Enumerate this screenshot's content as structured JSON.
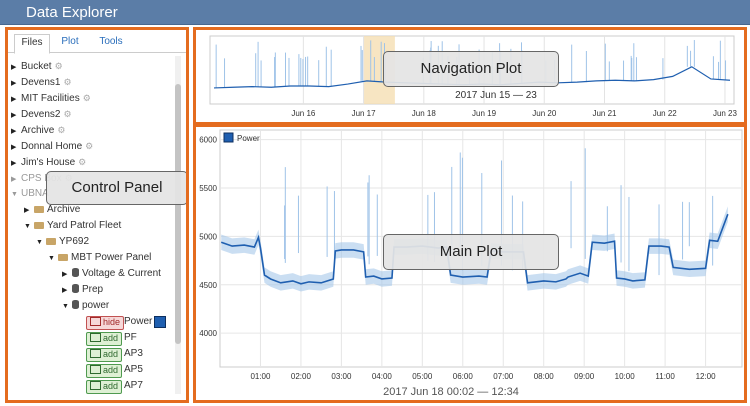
{
  "app": {
    "title": "Data Explorer"
  },
  "tabs": [
    {
      "label": "Files",
      "active": true
    },
    {
      "label": "Plot",
      "active": false
    },
    {
      "label": "Tools",
      "active": false
    }
  ],
  "tree": {
    "root_items": [
      "Bucket",
      "Devens1",
      "MIT Facilities",
      "Devens2",
      "Archive",
      "Donnal Home",
      "Jim's House",
      "CPS Box",
      "UBNA"
    ],
    "archive": "Archive",
    "fleet": "Yard Patrol Fleet",
    "vessel": "YP692",
    "panel": "MBT Power Panel",
    "streams": [
      "Voltage & Current",
      "Prep",
      "power"
    ],
    "elements": [
      {
        "button": "hide",
        "name": "Power",
        "plotted": true
      },
      {
        "button": "add",
        "name": "PF",
        "plotted": false
      },
      {
        "button": "add",
        "name": "AP3",
        "plotted": false
      },
      {
        "button": "add",
        "name": "AP5",
        "plotted": false
      },
      {
        "button": "add",
        "name": "AP7",
        "plotted": false
      }
    ]
  },
  "overlays": {
    "control_panel": "Control Panel",
    "navigation_plot": "Navigation Plot",
    "main_plot": "Main Plot"
  },
  "colors": {
    "accent": "#e46c1f",
    "series": "#1f5fb0",
    "series_band": "#9fc3e8",
    "selection": "#f5deb3"
  },
  "chart_data": [
    {
      "type": "line",
      "role": "navigation",
      "x_ticks": [
        "Jun 16",
        "Jun 17",
        "Jun 18",
        "Jun 19",
        "Jun 20",
        "Jun 21",
        "Jun 22",
        "Jun 23"
      ],
      "range_label": "2017 Jun 15 — 23",
      "selection": [
        "Jun 18 00:02",
        "Jun 18 12:34"
      ],
      "series": [
        {
          "values": [
            0.22,
            0.23,
            0.24,
            0.23,
            0.25,
            0.25,
            0.24,
            0.28,
            0.33,
            0.31,
            0.3,
            0.29,
            0.28,
            0.27,
            0.28,
            0.27,
            0.29,
            0.31,
            0.3,
            0.31,
            0.33,
            0.34,
            0.33,
            0.35,
            0.4,
            0.55,
            0.36,
            0.34
          ]
        }
      ]
    },
    {
      "type": "line",
      "role": "main",
      "legend": [
        "Power"
      ],
      "y_ticks": [
        4000,
        4500,
        5000,
        5500,
        6000
      ],
      "ylim": [
        3650,
        6100
      ],
      "x_ticks": [
        "01:00",
        "02:00",
        "03:00",
        "04:00",
        "05:00",
        "06:00",
        "07:00",
        "08:00",
        "09:00",
        "10:00",
        "11:00",
        "12:00"
      ],
      "range_label": "2017 Jun 18 00:02 — 12:34",
      "series": [
        {
          "name": "Power",
          "x_hours": [
            0.03,
            0.3,
            0.6,
            0.85,
            0.95,
            1.0,
            1.1,
            1.25,
            1.5,
            1.8,
            2.0,
            2.2,
            2.5,
            2.8,
            2.85,
            3.0,
            3.3,
            3.55,
            3.6,
            3.8,
            4.0,
            4.25,
            4.3,
            4.6,
            5.0,
            5.4,
            5.6,
            5.7,
            6.0,
            6.4,
            6.6,
            6.7,
            7.0,
            7.5,
            7.6,
            8.0,
            8.3,
            8.55,
            8.6,
            8.9,
            9.1,
            9.2,
            9.5,
            9.75,
            9.8,
            10.0,
            10.2,
            10.5,
            10.6,
            10.9,
            11.1,
            11.2,
            11.6,
            12.0,
            12.1,
            12.3,
            12.55
          ],
          "y": [
            4940,
            4900,
            4910,
            4890,
            4990,
            4880,
            4600,
            4560,
            4520,
            4540,
            4510,
            4530,
            4520,
            4560,
            4850,
            4860,
            4860,
            4840,
            4580,
            4590,
            4560,
            4570,
            4890,
            4890,
            4900,
            4880,
            4890,
            4600,
            4580,
            4590,
            4580,
            4850,
            4840,
            4840,
            4520,
            4540,
            4530,
            4560,
            4580,
            4620,
            4590,
            4940,
            4930,
            4950,
            4570,
            4560,
            4540,
            4550,
            4900,
            4900,
            4890,
            4680,
            4660,
            4670,
            4960,
            4950,
            5230
          ]
        }
      ]
    }
  ]
}
